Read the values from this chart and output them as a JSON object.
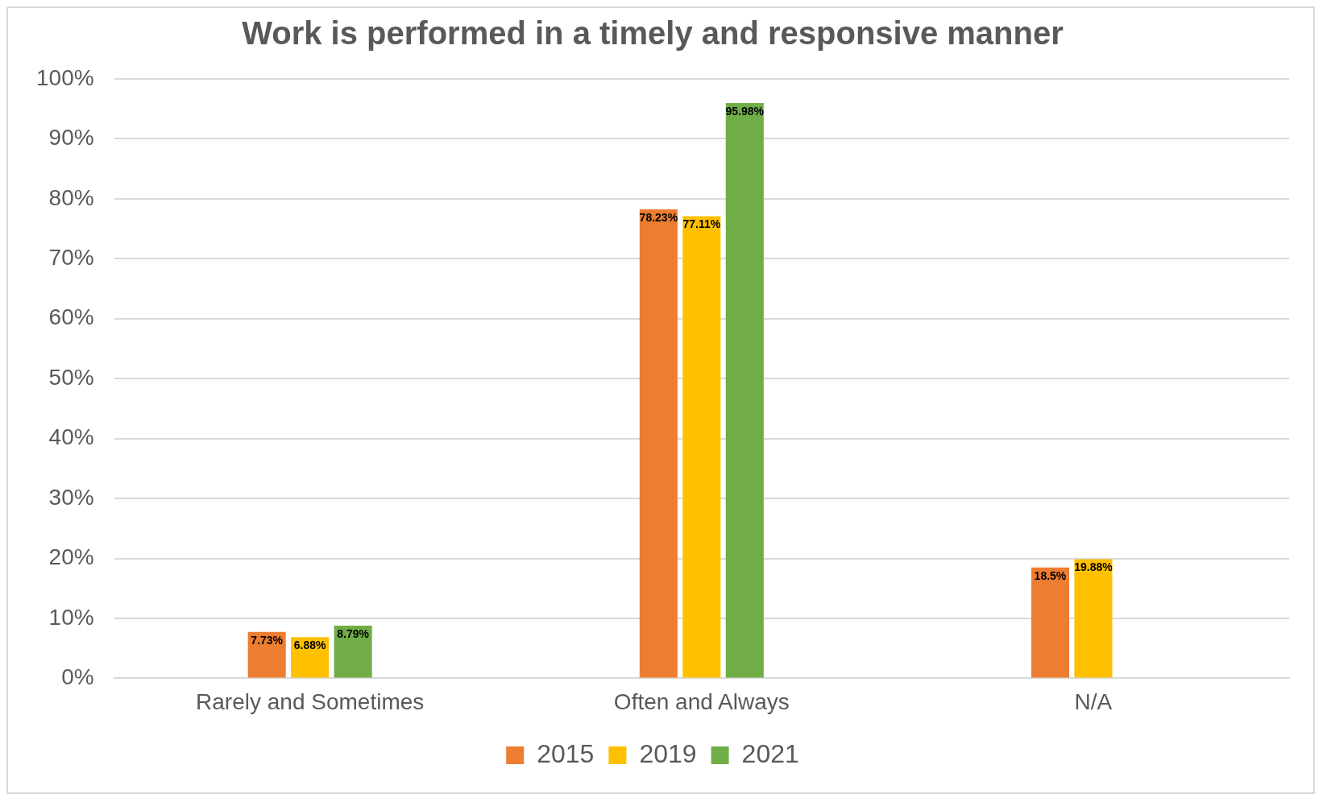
{
  "chart_data": {
    "type": "bar",
    "title": "Work is performed in a timely and responsive manner",
    "categories": [
      "Rarely and Sometimes",
      "Often and Always",
      "N/A"
    ],
    "series": [
      {
        "name": "2015",
        "color": "#ed7d31",
        "values": [
          7.73,
          78.23,
          18.5
        ],
        "value_labels": [
          "7.73%",
          "78.23%",
          "18.5%"
        ]
      },
      {
        "name": "2019",
        "color": "#ffc000",
        "values": [
          6.88,
          77.11,
          19.88
        ],
        "value_labels": [
          "6.88%",
          "77.11%",
          "19.88%"
        ]
      },
      {
        "name": "2021",
        "color": "#70ad47",
        "values": [
          8.79,
          95.98,
          null
        ],
        "value_labels": [
          "8.79%",
          "95.98%",
          null
        ]
      }
    ],
    "ylim": [
      0,
      100
    ],
    "yticks": [
      {
        "value": 0,
        "label": "0%"
      },
      {
        "value": 10,
        "label": "10%"
      },
      {
        "value": 20,
        "label": "20%"
      },
      {
        "value": 30,
        "label": "30%"
      },
      {
        "value": 40,
        "label": "40%"
      },
      {
        "value": 50,
        "label": "50%"
      },
      {
        "value": 60,
        "label": "60%"
      },
      {
        "value": 70,
        "label": "70%"
      },
      {
        "value": 80,
        "label": "80%"
      },
      {
        "value": 90,
        "label": "90%"
      },
      {
        "value": 100,
        "label": "100%"
      }
    ],
    "grid": "y",
    "legend": "bottom"
  }
}
